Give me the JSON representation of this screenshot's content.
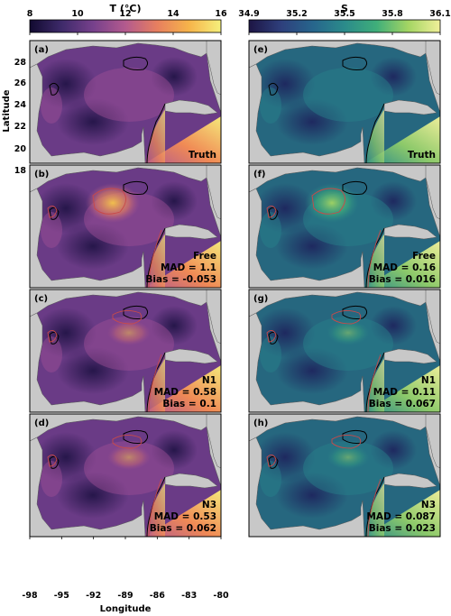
{
  "colorbars": {
    "temperature": {
      "title": "T (°C)",
      "ticks": [
        "8",
        "10",
        "12",
        "14",
        "16"
      ],
      "range": [
        8,
        16
      ],
      "colors": [
        "#110a30",
        "#3e2a6a",
        "#77418c",
        "#b35a8e",
        "#e77f5f",
        "#f6b44a",
        "#f5f07c"
      ]
    },
    "salinity": {
      "title": "S",
      "ticks": [
        "34.9",
        "35.2",
        "35.5",
        "35.8",
        "36.1"
      ],
      "range": [
        34.9,
        36.1
      ],
      "colors": [
        "#1d1544",
        "#2e3f7c",
        "#27658c",
        "#2b8b8b",
        "#3fae7a",
        "#a4d563",
        "#f1f09a"
      ]
    }
  },
  "axes": {
    "ylabel": "Latitude",
    "xlabel": "Longitude",
    "yticks": [
      "28",
      "26",
      "24",
      "22",
      "20",
      "18"
    ],
    "xticks": [
      "-98",
      "-95",
      "-92",
      "-89",
      "-86",
      "-83",
      "-80"
    ]
  },
  "chart_data": [
    {
      "type": "heatmap",
      "panel": "(a)",
      "variable": "T",
      "experiment": "Truth"
    },
    {
      "type": "heatmap",
      "panel": "(b)",
      "variable": "T",
      "experiment": "Free",
      "mad": "MAD = 1.1",
      "bias": "Bias = -0.053"
    },
    {
      "type": "heatmap",
      "panel": "(c)",
      "variable": "T",
      "experiment": "N1",
      "mad": "MAD = 0.58",
      "bias": "Bias = 0.1"
    },
    {
      "type": "heatmap",
      "panel": "(d)",
      "variable": "T",
      "experiment": "N3",
      "mad": "MAD = 0.53",
      "bias": "Bias = 0.062"
    },
    {
      "type": "heatmap",
      "panel": "(e)",
      "variable": "S",
      "experiment": "Truth"
    },
    {
      "type": "heatmap",
      "panel": "(f)",
      "variable": "S",
      "experiment": "Free",
      "mad": "MAD = 0.16",
      "bias": "Bias = 0.016"
    },
    {
      "type": "heatmap",
      "panel": "(g)",
      "variable": "S",
      "experiment": "N1",
      "mad": "MAD = 0.11",
      "bias": "Bias = 0.067"
    },
    {
      "type": "heatmap",
      "panel": "(h)",
      "variable": "S",
      "experiment": "N3",
      "mad": "MAD = 0.087",
      "bias": "Bias = 0.023"
    }
  ]
}
